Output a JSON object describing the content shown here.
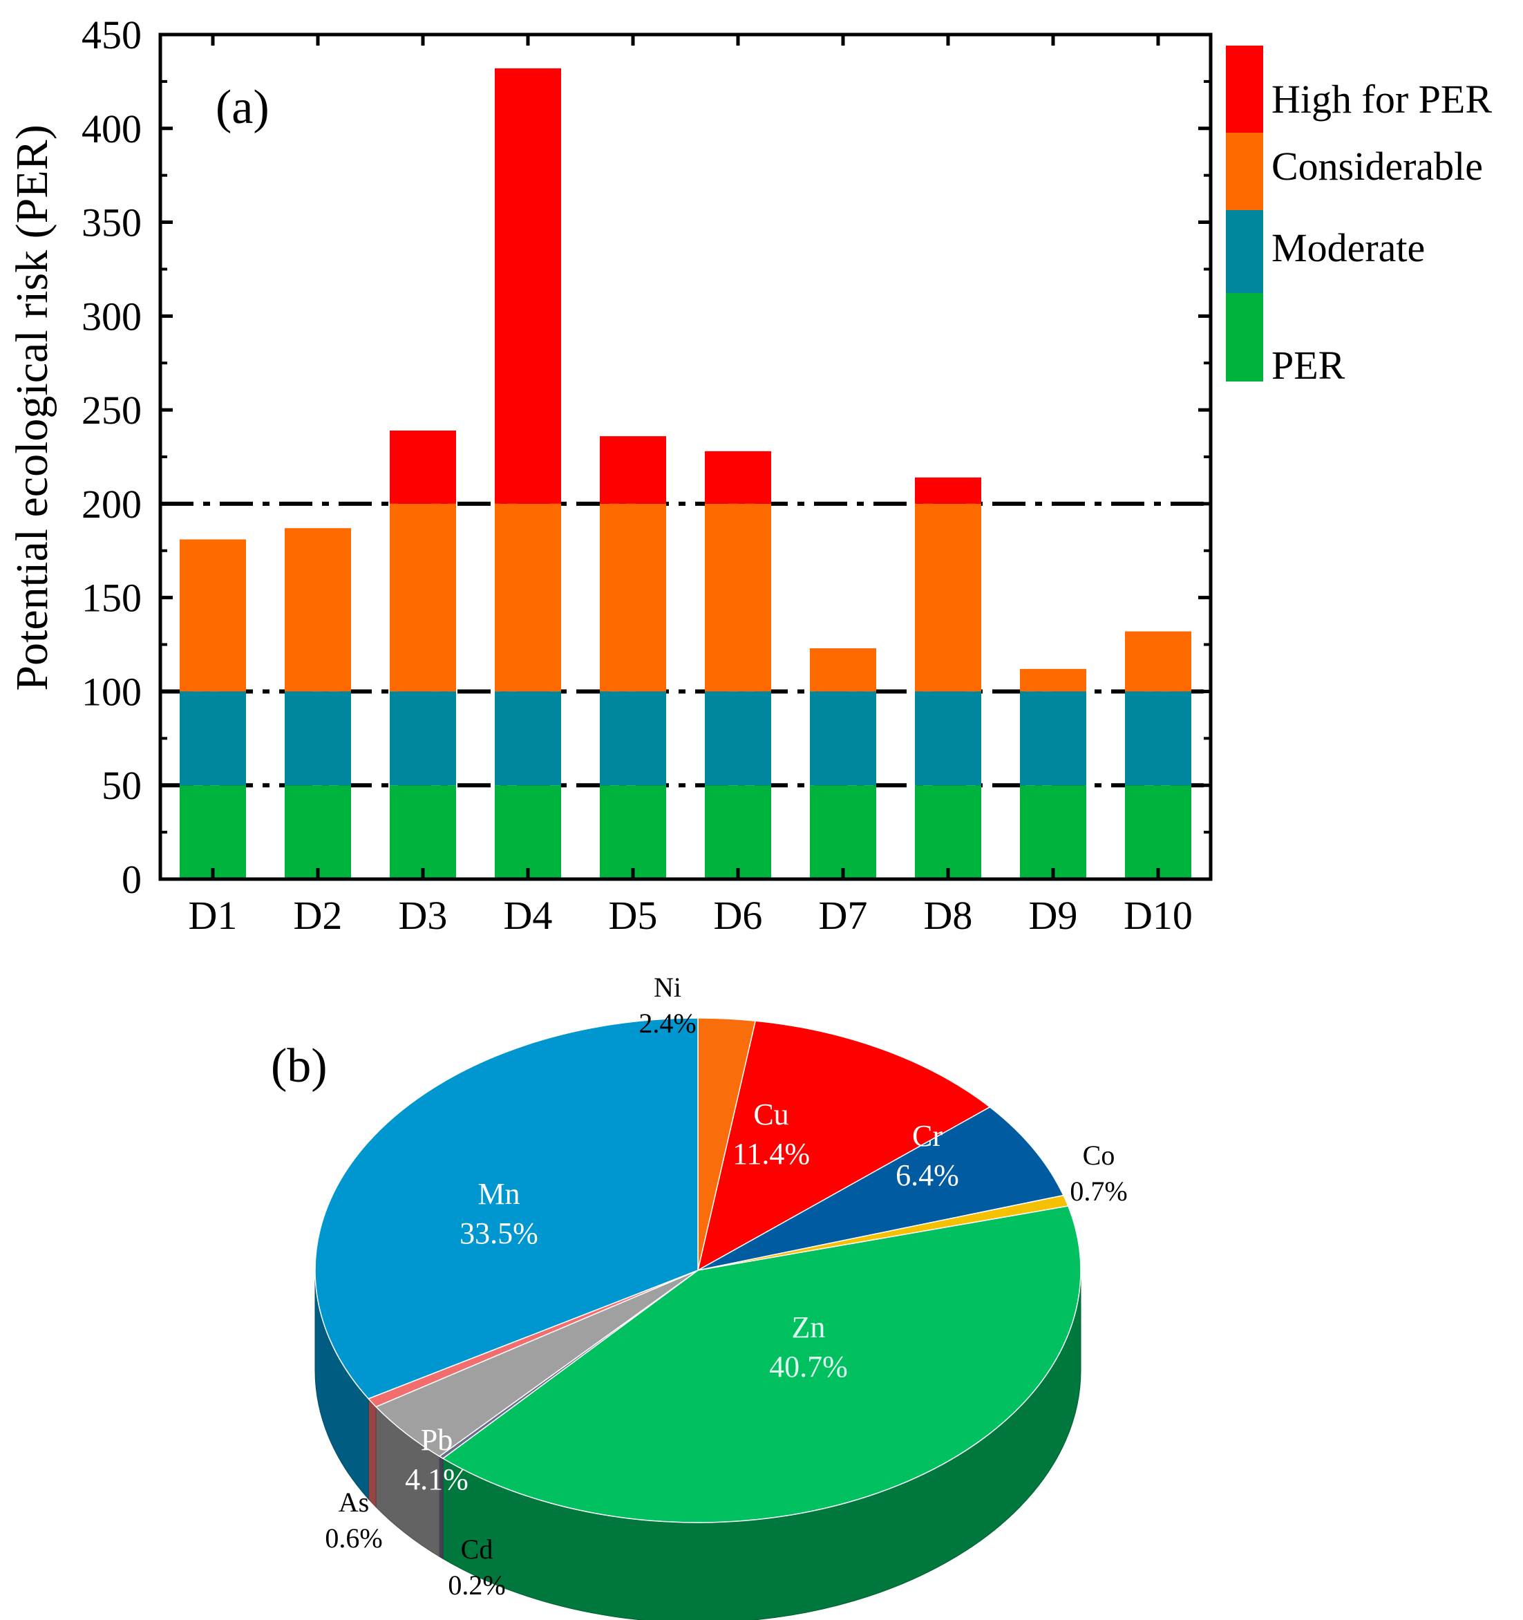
{
  "chart_data": [
    {
      "panel_label": "(a)",
      "type": "bar",
      "stacked": true,
      "categories": [
        "D1",
        "D2",
        "D3",
        "D4",
        "D5",
        "D6",
        "D7",
        "D8",
        "D9",
        "D10"
      ],
      "totals": [
        181,
        187,
        239,
        432,
        236,
        228,
        123,
        214,
        112,
        132
      ],
      "class_bounds": [
        50,
        100,
        200
      ],
      "series": [
        {
          "name": "PER",
          "color": "#00B33C"
        },
        {
          "name": "Moderate",
          "color": "#00879F"
        },
        {
          "name": "Considerable",
          "color": "#FF6A00"
        },
        {
          "name": "High for PER",
          "color": "#FF0000"
        }
      ],
      "legend_labels": [
        "High for PER",
        "Considerable",
        "Moderate",
        "PER"
      ],
      "legend_colors": [
        "#FF0000",
        "#FF6A00",
        "#00879F",
        "#00B33C"
      ],
      "ylabel": "Potential ecological risk (PER)",
      "xlabel": "",
      "ylim": [
        0,
        450
      ],
      "yticks": [
        "0",
        "50",
        "100",
        "150",
        "200",
        "250",
        "300",
        "350",
        "400",
        "450"
      ],
      "reference_lines": [
        50,
        100,
        200
      ]
    },
    {
      "panel_label": "(b)",
      "type": "pie",
      "slices": [
        {
          "name": "Ni",
          "pct_label": "2.4%",
          "value": 2.4,
          "color": "#F96D0A"
        },
        {
          "name": "Cu",
          "pct_label": "11.4%",
          "value": 11.4,
          "color": "#FF0000"
        },
        {
          "name": "Cr",
          "pct_label": "6.4%",
          "value": 6.4,
          "color": "#005BA0"
        },
        {
          "name": "Co",
          "pct_label": "0.7%",
          "value": 0.7,
          "color": "#F5C000"
        },
        {
          "name": "Zn",
          "pct_label": "40.7%",
          "value": 40.7,
          "color": "#00C060"
        },
        {
          "name": "Cd",
          "pct_label": "0.2%",
          "value": 0.2,
          "color": "#6A6A8A"
        },
        {
          "name": "Pb",
          "pct_label": "4.1%",
          "value": 4.1,
          "color": "#A0A0A0"
        },
        {
          "name": "As",
          "pct_label": "0.6%",
          "value": 0.6,
          "color": "#F26D6D"
        },
        {
          "name": "Mn",
          "pct_label": "33.5%",
          "value": 33.5,
          "color": "#0096D0"
        }
      ]
    }
  ]
}
